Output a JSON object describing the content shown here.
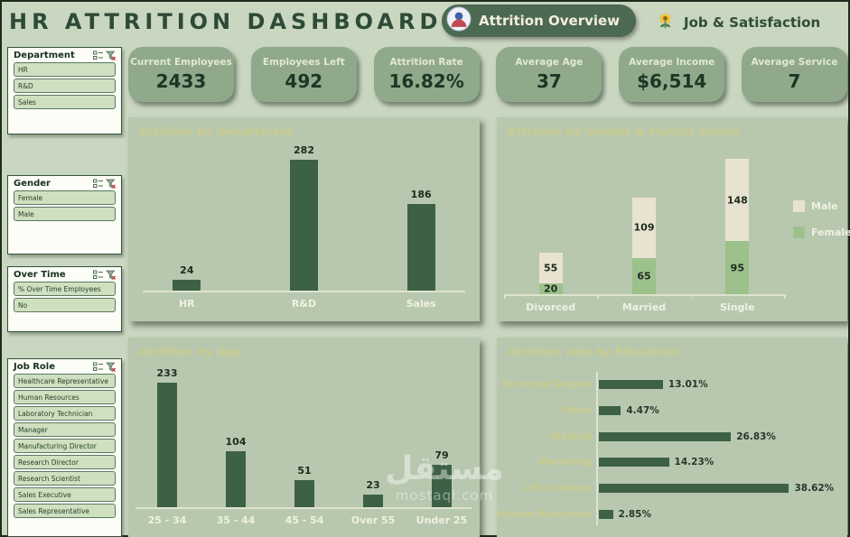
{
  "header": {
    "title": "HR ATTRITION DASHBOARD",
    "tabs": [
      {
        "label": "Attrition Overview",
        "icon": "person-badge-icon",
        "active": true
      },
      {
        "label": "Job & Satisfaction",
        "icon": "flower-icon",
        "active": false
      }
    ]
  },
  "slicers": [
    {
      "title": "Department",
      "items": [
        "HR",
        "R&D",
        "Sales"
      ]
    },
    {
      "title": "Gender",
      "items": [
        "Female",
        "Male"
      ]
    },
    {
      "title": "Over Time",
      "items": [
        "% Over Time Employees",
        "No"
      ]
    },
    {
      "title": "Job Role",
      "items": [
        "Healthcare Representative",
        "Human Resources",
        "Laboratory Technician",
        "Manager",
        "Manufacturing Director",
        "Research Director",
        "Research Scientist",
        "Sales Executive",
        "Sales Representative"
      ]
    }
  ],
  "kpis": [
    {
      "label": "Current Employees",
      "value": "2433"
    },
    {
      "label": "Employees Left",
      "value": "492"
    },
    {
      "label": "Attrition Rate",
      "value": "16.82%"
    },
    {
      "label": "Average Age",
      "value": "37"
    },
    {
      "label": "Average Income",
      "value": "$6,514"
    },
    {
      "label": "Average Service",
      "value": "7"
    }
  ],
  "chart_data": [
    {
      "type": "bar",
      "title": "Attrition by Department",
      "categories": [
        "HR",
        "R&D",
        "Sales"
      ],
      "values": [
        24,
        282,
        186
      ],
      "ylim": [
        0,
        300
      ],
      "grid": false
    },
    {
      "type": "bar",
      "stacked": true,
      "title": "Attrition by Gender & Marital Status",
      "categories": [
        "Divorced",
        "Married",
        "Single"
      ],
      "series": [
        {
          "name": "Female",
          "values": [
            20,
            65,
            95
          ]
        },
        {
          "name": "Male",
          "values": [
            55,
            109,
            148
          ]
        }
      ],
      "legend": [
        "Male",
        "Female"
      ],
      "legend_position": "right",
      "ylim": [
        0,
        260
      ],
      "grid": false
    },
    {
      "type": "bar",
      "title": "Attrition by Age",
      "categories": [
        "25 - 34",
        "35 - 44",
        "45 - 54",
        "Over 55",
        "Under 25"
      ],
      "values": [
        233,
        104,
        51,
        23,
        79
      ],
      "ylim": [
        0,
        250
      ],
      "grid": false
    },
    {
      "type": "bar",
      "orientation": "horizontal",
      "title": "Attrition rate by Education",
      "categories": [
        "Technical Degree",
        "Other",
        "Medical",
        "Marketing",
        "Life Sciences",
        "Human Resources"
      ],
      "values": [
        13.01,
        4.47,
        26.83,
        14.23,
        38.62,
        2.85
      ],
      "value_labels": [
        "13.01%",
        "4.47%",
        "26.83%",
        "14.23%",
        "38.62%",
        "2.85%"
      ],
      "xlim": [
        0,
        40
      ],
      "grid": false
    }
  ],
  "colors": {
    "bar": "#3e6146",
    "male": "#e8e3d0",
    "female": "#9dc18b",
    "panel_title": "#c9cc8d",
    "value_label": "#1c2b1e",
    "category_label": "#eef2e0",
    "accent_dark_green": "#4c6951",
    "kpi_card": "#8fa98a",
    "panel_bg": "#b8c8af"
  },
  "icons": {
    "tab_overview": "person-badge-icon",
    "tab_job": "flower-icon",
    "slicer_multiselect": "multiselect-icon",
    "slicer_clear_filter": "clear-filter-icon"
  },
  "watermark": {
    "text": "مستقل",
    "subtext": "mostaql.com"
  }
}
